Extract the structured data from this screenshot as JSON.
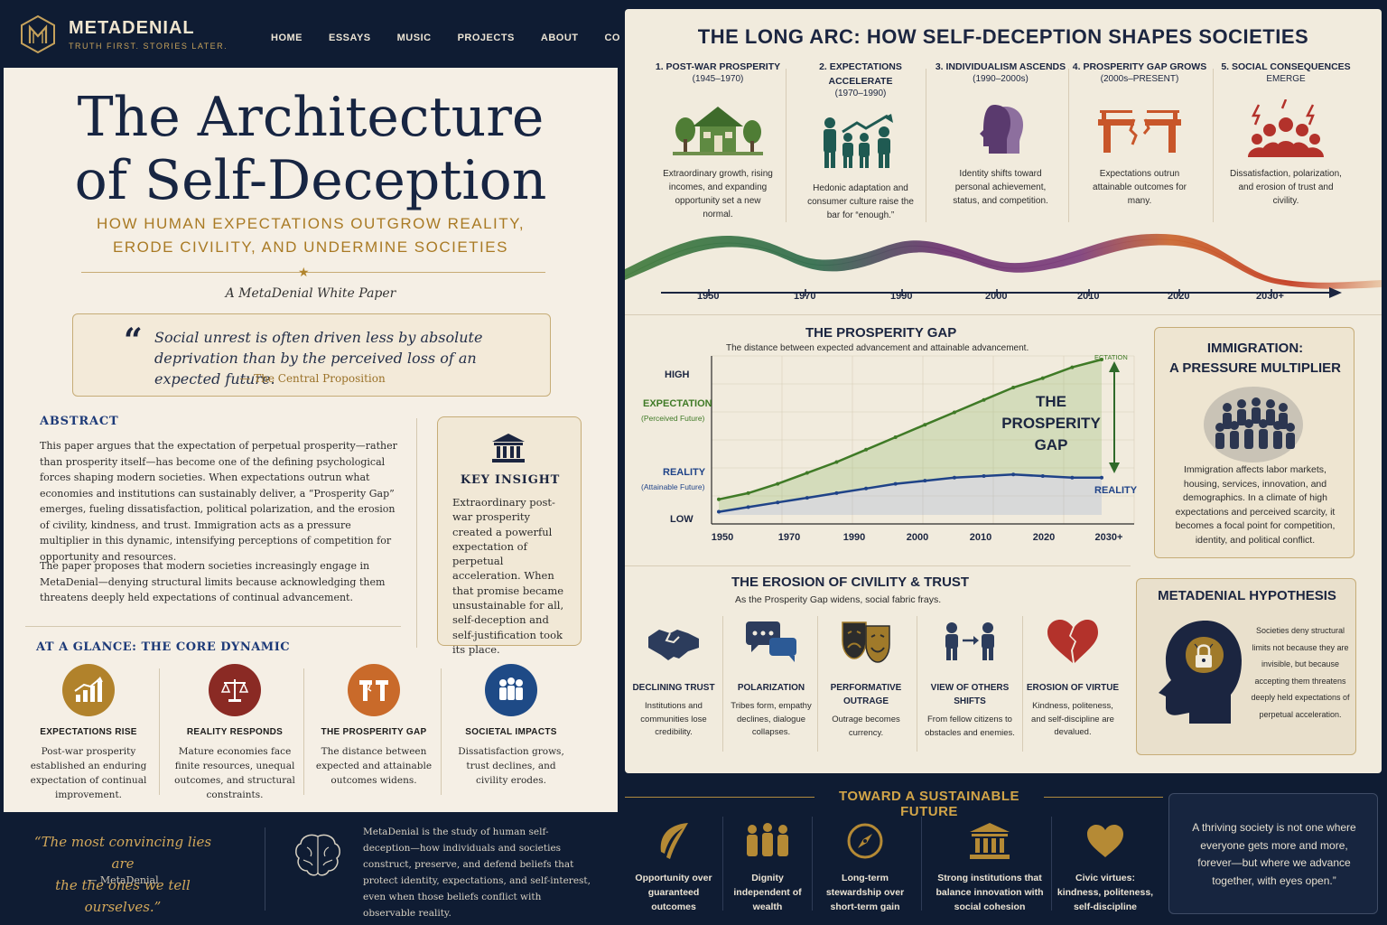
{
  "nav": {
    "brand": "METADENIAL",
    "tagline": "TRUTH FIRST. STORIES LATER.",
    "links": [
      "HOME",
      "ESSAYS",
      "MUSIC",
      "PROJECTS",
      "ABOUT",
      "CONTACT"
    ]
  },
  "hero": {
    "title_line1": "The Architecture",
    "title_line2": "of Self-Deception",
    "subtitle_line1": "HOW HUMAN EXPECTATIONS OUTGROW REALITY,",
    "subtitle_line2": "ERODE CIVILITY, AND UNDERMINE SOCIETIES",
    "paper_type": "A MetaDenial White Paper"
  },
  "proposition": {
    "text": "Social unrest is often driven less by absolute deprivation than by the perceived loss of an expected future.",
    "attribution": "— The Central Proposition"
  },
  "abstract": {
    "heading": "ABSTRACT",
    "p1": "This paper argues that the expectation of perpetual prosperity—rather than prosperity itself—has become one of the defining psychological forces shaping modern societies. When expectations outrun what economies and institutions can sustainably deliver, a “Prosperity Gap” emerges, fueling dissatisfaction, political polarization, and the erosion of civility, kindness, and trust. Immigration acts as a pressure multiplier in this dynamic, intensifying perceptions of competition for opportunity and resources.",
    "p2": "The paper proposes that modern societies increasingly engage in MetaDenial—denying structural limits because acknowledging them threatens deeply held expectations of continual advancement."
  },
  "key_insight": {
    "title": "KEY INSIGHT",
    "body": "Extraordinary post-war prosperity created a powerful expectation of perpetual acceleration. When that promise became unsustainable for all, self-deception and self-justification took its place."
  },
  "glance": {
    "heading": "AT A GLANCE: THE CORE DYNAMIC",
    "items": [
      {
        "title": "EXPECTATIONS RISE",
        "body": "Post-war prosperity established an enduring expectation of continual improvement.",
        "color": "#b1822b",
        "icon": "rising-chart-icon"
      },
      {
        "title": "REALITY RESPONDS",
        "body": "Mature economies face finite resources, unequal outcomes, and structural constraints.",
        "color": "#8a2a24",
        "icon": "scales-icon"
      },
      {
        "title": "THE PROSPERITY GAP",
        "body": "The distance between expected and attainable outcomes widens.",
        "color": "#c96a2a",
        "icon": "broken-bridge-icon"
      },
      {
        "title": "SOCIETAL IMPACTS",
        "body": "Dissatisfaction grows, trust declines, and civility erodes.",
        "color": "#1e4a86",
        "icon": "people-icon"
      }
    ]
  },
  "left_footer": {
    "quote_line1": "“The most convincing lies are",
    "quote_line2": "the the ones we tell ourselves.”",
    "attribution": "— MetaDenial",
    "about": "MetaDenial is the study of human self-deception—how individuals and societies construct, preserve, and defend beliefs that protect identity, expectations, and self-interest, even when those beliefs conflict with observable reality."
  },
  "long_arc": {
    "title": "THE LONG ARC: HOW SELF-DECEPTION SHAPES SOCIETIES",
    "stages": [
      {
        "title": "1. POST-WAR PROSPERITY",
        "years": "(1945–1970)",
        "body": "Extraordinary growth, rising incomes, and expanding opportunity set a new normal.",
        "icon": "house-icon"
      },
      {
        "title": "2. EXPECTATIONS ACCELERATE",
        "years": "(1970–1990)",
        "body": "Hedonic adaptation and consumer culture raise the bar for “enough.”",
        "icon": "family-arrow-icon"
      },
      {
        "title": "3. INDIVIDUALISM ASCENDS",
        "years": "(1990–2000s)",
        "body": "Identity shifts toward personal achievement, status, and competition.",
        "icon": "heads-icon"
      },
      {
        "title": "4. PROSPERITY GAP GROWS",
        "years": "(2000s–PRESENT)",
        "body": "Expectations outrun attainable outcomes for many.",
        "icon": "broken-bridge-icon"
      },
      {
        "title": "5. SOCIAL CONSEQUENCES",
        "years": "EMERGE",
        "body": "Dissatisfaction, polarization, and erosion of trust and civility.",
        "icon": "crowd-lightning-icon"
      }
    ],
    "timeline_years": [
      "1950",
      "1970",
      "1990",
      "2000",
      "2010",
      "2020",
      "2030+"
    ]
  },
  "prosperity_gap": {
    "title": "THE PROSPERITY GAP",
    "subtitle": "The distance between expected advancement and attainable advancement.",
    "gap_label_line1": "THE",
    "gap_label_line2": "PROSPERITY",
    "gap_label_line3": "GAP",
    "expectation_end_label": "ECTATION"
  },
  "chart_data": {
    "type": "line",
    "title": "THE PROSPERITY GAP",
    "x_tick_labels": [
      "1950",
      "1970",
      "1990",
      "2000",
      "2010",
      "2020",
      "2030+"
    ],
    "y_tick_labels": [
      "HIGH",
      "LOW"
    ],
    "y_axis_labels": [
      {
        "label": "EXPECTATION",
        "sublabel": "(Perceived Future)"
      },
      {
        "label": "REALITY",
        "sublabel": "(Attainable Future)"
      }
    ],
    "grid": true,
    "series": [
      {
        "name": "EXPECTATION",
        "color": "#3f7a26",
        "values": [
          0.1,
          0.14,
          0.2,
          0.27,
          0.34,
          0.42,
          0.5,
          0.58,
          0.66,
          0.74,
          0.82,
          0.88,
          0.95,
          1.0
        ]
      },
      {
        "name": "REALITY",
        "color": "#1f4388",
        "values": [
          0.02,
          0.05,
          0.08,
          0.11,
          0.14,
          0.17,
          0.2,
          0.22,
          0.24,
          0.25,
          0.26,
          0.25,
          0.24,
          0.24
        ]
      }
    ],
    "series_label": "REALITY"
  },
  "immigration": {
    "title_line1": "IMMIGRATION:",
    "title_line2": "A PRESSURE MULTIPLIER",
    "body": "Immigration affects labor markets, housing, services, innovation, and demographics. In a climate of high expectations and perceived scarcity, it becomes a focal point for competition, identity, and political conflict."
  },
  "civility": {
    "title": "THE EROSION OF CIVILITY & TRUST",
    "subtitle": "As the Prosperity Gap widens, social fabric frays.",
    "items": [
      {
        "title": "DECLINING TRUST",
        "body": "Institutions and communities lose credibility.",
        "icon": "handshake-icon"
      },
      {
        "title": "POLARIZATION",
        "body": "Tribes form, empathy declines, dialogue collapses.",
        "icon": "speech-bubbles-icon"
      },
      {
        "title": "PERFORMATIVE OUTRAGE",
        "body": "Outrage becomes currency.",
        "icon": "theater-masks-icon"
      },
      {
        "title": "VIEW OF OTHERS SHIFTS",
        "body": "From fellow citizens to obstacles and enemies.",
        "icon": "people-arrow-icon"
      },
      {
        "title": "EROSION OF VIRTUE",
        "body": "Kindness, politeness, and self-discipline are devalued.",
        "icon": "broken-heart-icon"
      }
    ]
  },
  "hypothesis": {
    "title": "METADENIAL HYPOTHESIS",
    "body": "Societies deny structural limits not because they are invisible, but because accepting them threatens deeply held expectations of perpetual acceleration."
  },
  "future": {
    "title": "TOWARD A SUSTAINABLE FUTURE",
    "items": [
      {
        "label": "Opportunity over guaranteed outcomes",
        "icon": "leaf-icon"
      },
      {
        "label": "Dignity independent of wealth",
        "icon": "people-icon"
      },
      {
        "label": "Long-term stewardship over short-term gain",
        "icon": "compass-icon"
      },
      {
        "label": "Strong institutions that balance innovation with social cohesion",
        "icon": "institution-icon"
      },
      {
        "label": "Civic virtues: kindness, politeness, self-discipline",
        "icon": "heart-icon"
      }
    ],
    "closing_quote": "A thriving society is not one where everyone gets more and more, forever—but where we advance together, with eyes open.”"
  },
  "colors": {
    "navy": "#0f1c33",
    "gold": "#c5a15b",
    "paper": "#f5efe5",
    "expectation_green": "#3f7a26",
    "reality_blue": "#1f4388"
  }
}
